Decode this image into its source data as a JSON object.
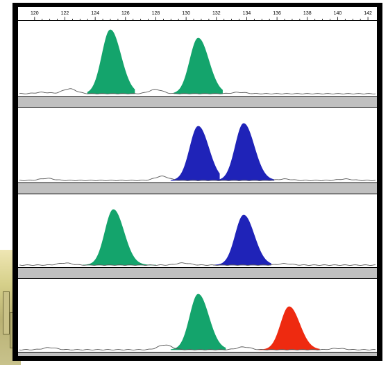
{
  "colors": {
    "green": "#14a46c",
    "blue": "#1f23b8",
    "red": "#ee2a10",
    "baseline": "#555555",
    "separator": "#c0c0c0",
    "frame": "#000000"
  },
  "chart_data": {
    "type": "area",
    "xlim": [
      119,
      142.5
    ],
    "x_ticks": [
      "120",
      "122",
      "124",
      "126",
      "128",
      "130",
      "132",
      "134",
      "136",
      "138",
      "140",
      "142"
    ],
    "grid": false,
    "lanes": [
      {
        "peaks": [
          {
            "color": "green",
            "x_center": 125.0,
            "width": 0.55,
            "height": 0.92,
            "x_start": 123.5,
            "x_end": 126.6
          },
          {
            "color": "green",
            "x_center": 130.8,
            "width": 0.55,
            "height": 0.8,
            "x_start": 129.2,
            "x_end": 132.4
          }
        ],
        "noise": [
          [
            120.5,
            0.02
          ],
          [
            122.3,
            0.07
          ],
          [
            128.0,
            0.06
          ],
          [
            133.5,
            0.02
          ]
        ]
      },
      {
        "peaks": [
          {
            "color": "blue",
            "x_center": 130.8,
            "width": 0.55,
            "height": 0.78,
            "x_start": 129.0,
            "x_end": 132.2
          },
          {
            "color": "blue",
            "x_center": 133.8,
            "width": 0.55,
            "height": 0.82,
            "x_start": 132.2,
            "x_end": 135.8
          }
        ],
        "noise": [
          [
            120.8,
            0.03
          ],
          [
            128.4,
            0.06
          ],
          [
            136.5,
            0.02
          ],
          [
            140.5,
            0.02
          ]
        ]
      },
      {
        "peaks": [
          {
            "color": "green",
            "x_center": 125.2,
            "width": 0.55,
            "height": 0.8,
            "x_start": 123.2,
            "x_end": 128.0
          },
          {
            "color": "blue",
            "x_center": 133.8,
            "width": 0.55,
            "height": 0.72,
            "x_start": 131.8,
            "x_end": 135.6
          }
        ],
        "noise": [
          [
            122.0,
            0.03
          ],
          [
            129.8,
            0.03
          ],
          [
            136.5,
            0.02
          ]
        ]
      },
      {
        "peaks": [
          {
            "color": "green",
            "x_center": 130.8,
            "width": 0.55,
            "height": 0.8,
            "x_start": 129.0,
            "x_end": 132.6
          },
          {
            "color": "red",
            "x_center": 136.8,
            "width": 0.55,
            "height": 0.62,
            "x_start": 134.8,
            "x_end": 138.8
          }
        ],
        "noise": [
          [
            121.0,
            0.03
          ],
          [
            128.6,
            0.07
          ],
          [
            133.8,
            0.04
          ],
          [
            140.0,
            0.02
          ]
        ]
      }
    ]
  }
}
